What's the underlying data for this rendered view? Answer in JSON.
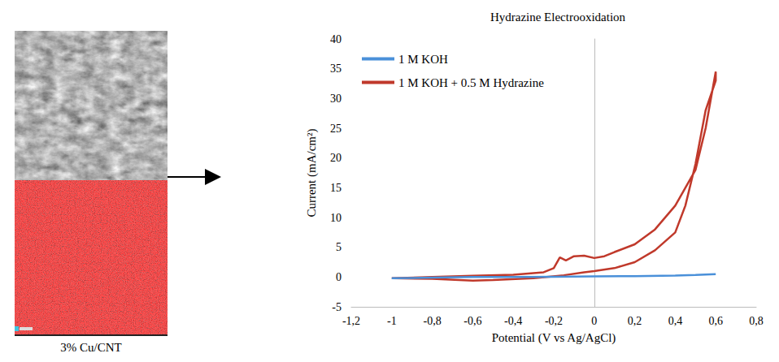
{
  "chart_data": {
    "type": "line",
    "title": "Hydrazine Electrooxidation",
    "x_label": "Potential (V vs Ag/AgCl)",
    "y_label": "Current (mA/cm²)",
    "xlim": [
      -1.2,
      0.8
    ],
    "xticks": [
      {
        "value": -1.2,
        "label": "-1,2"
      },
      -1,
      {
        "value": -0.8,
        "label": "-0,8"
      },
      {
        "value": -0.6,
        "label": "-0,6"
      },
      {
        "value": -0.4,
        "label": "-0,4"
      },
      {
        "value": -0.2,
        "label": "-0,2"
      },
      0,
      {
        "value": 0.2,
        "label": "0,2"
      },
      {
        "value": 0.4,
        "label": "0,4"
      },
      {
        "value": 0.6,
        "label": "0,6"
      },
      {
        "value": 0.8,
        "label": "0,8"
      }
    ],
    "ylim": [
      -5,
      40
    ],
    "yticks": [
      -5,
      0,
      5,
      10,
      15,
      20,
      25,
      30,
      35,
      40
    ],
    "grid": false,
    "legend": "upper left",
    "marker": "none",
    "series": [
      {
        "name": "1 M KOH",
        "color": "#4a90d9",
        "x": [
          -1,
          -0.8,
          -0.6,
          -0.4,
          -0.2,
          0,
          0.2,
          0.4,
          0.5,
          0.6
        ],
        "values": [
          -0.2,
          -0.1,
          0,
          0,
          0.05,
          0.1,
          0.15,
          0.25,
          0.35,
          0.5
        ]
      },
      {
        "name": "1 M KOH + 0.5 M Hydrazine",
        "color": "#c0392b",
        "x": [
          -1,
          -0.8,
          -0.6,
          -0.4,
          -0.25,
          -0.2,
          -0.17,
          -0.14,
          -0.1,
          -0.05,
          0,
          0.05,
          0.1,
          0.2,
          0.3,
          0.4,
          0.5,
          0.55,
          0.6,
          0.6,
          0.55,
          0.5,
          0.45,
          0.4,
          0.3,
          0.2,
          0.1,
          0,
          -0.05,
          -0.15,
          -0.3,
          -0.5,
          -0.6,
          -0.8,
          -1
        ],
        "values": [
          -0.2,
          0,
          0.2,
          0.4,
          0.8,
          1.5,
          3.3,
          2.8,
          3.5,
          3.6,
          3.2,
          3.5,
          4.2,
          5.5,
          8,
          12,
          18,
          25,
          34.5,
          33,
          28,
          19,
          12,
          7.5,
          4.5,
          2.5,
          1.5,
          1,
          0.8,
          0.3,
          -0.2,
          -0.5,
          -0.6,
          -0.3,
          -0.2
        ]
      }
    ]
  },
  "image": {
    "caption": "3% Cu/CNT"
  }
}
